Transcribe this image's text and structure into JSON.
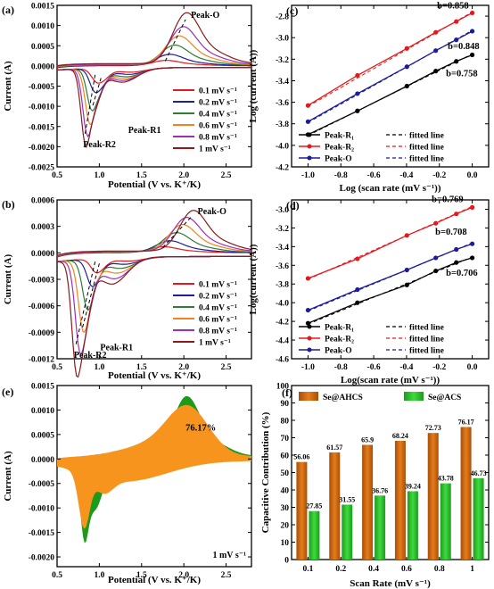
{
  "chart_data": [
    {
      "panel": "(a)",
      "type": "line",
      "xlabel": "Potential (V vs. K⁺/K)",
      "ylabel": "Current (A)",
      "xlim": [
        0.5,
        2.8
      ],
      "ylim": [
        -0.0025,
        0.0015
      ],
      "x_ticks": [
        "0.5",
        "1.0",
        "1.5",
        "2.0",
        "2.5"
      ],
      "y_ticks": [
        "-0.0025",
        "-0.0020",
        "-0.0015",
        "-0.0010",
        "-0.0005",
        "0.0000",
        "0.0005",
        "0.0010",
        "0.0015"
      ],
      "annotations": [
        "Peak-O",
        "Peak-R1",
        "Peak-R2"
      ],
      "series": [
        {
          "name": "0.1 mV s⁻¹",
          "color": "#e41a1c",
          "anodic_peak": [
            1.78,
            0.00012
          ],
          "cathodic_r1": [
            1.02,
            -0.0003
          ],
          "cathodic_r2": [
            0.95,
            -0.00022
          ]
        },
        {
          "name": "0.2 mV s⁻¹",
          "color": "#1f1f9e",
          "anodic_peak": [
            1.82,
            0.00025
          ],
          "cathodic_r1": [
            1.0,
            -0.00045
          ],
          "cathodic_r2": [
            0.93,
            -0.0004
          ]
        },
        {
          "name": "0.4 mV s⁻¹",
          "color": "#2e7d32",
          "anodic_peak": [
            1.88,
            0.00045
          ],
          "cathodic_r1": [
            0.97,
            -0.00062
          ],
          "cathodic_r2": [
            0.9,
            -0.0008
          ]
        },
        {
          "name": "0.6 mV s⁻¹",
          "color": "#f5821f",
          "anodic_peak": [
            1.93,
            0.00065
          ],
          "cathodic_r1": [
            0.95,
            -0.00075
          ],
          "cathodic_r2": [
            0.88,
            -0.0011
          ]
        },
        {
          "name": "0.8 mV s⁻¹",
          "color": "#9b30b8",
          "anodic_peak": [
            1.98,
            0.00085
          ],
          "cathodic_r1": [
            0.93,
            -0.00088
          ],
          "cathodic_r2": [
            0.85,
            -0.0014
          ]
        },
        {
          "name": "1 mV s⁻¹",
          "color": "#8b1a1a",
          "anodic_peak": [
            2.02,
            0.00115
          ],
          "cathodic_r1": [
            0.92,
            -0.001
          ],
          "cathodic_r2": [
            0.83,
            -0.0017
          ]
        }
      ]
    },
    {
      "panel": "(b)",
      "type": "line",
      "xlabel": "Potential (V vs. K⁺/K)",
      "ylabel": "Current (A)",
      "xlim": [
        0.5,
        2.8
      ],
      "ylim": [
        -0.0012,
        0.0006
      ],
      "x_ticks": [
        "0.5",
        "1.0",
        "1.5",
        "2.0",
        "2.5"
      ],
      "y_ticks": [
        "-0.0012",
        "-0.0009",
        "-0.0006",
        "-0.0003",
        "0.0000",
        "0.0003",
        "0.0006"
      ],
      "annotations": [
        "Peak-O",
        "Peak-R1",
        "Peak-R2"
      ],
      "series": [
        {
          "name": "0.1 mV s⁻¹",
          "color": "#e41a1c",
          "anodic_peak": [
            1.75,
            6e-05
          ],
          "cathodic_r1": [
            1.0,
            -0.00012
          ],
          "cathodic_r2": [
            0.95,
            -0.0001
          ]
        },
        {
          "name": "0.2 mV s⁻¹",
          "color": "#1f1f9e",
          "anodic_peak": [
            1.82,
            0.00012
          ],
          "cathodic_r1": [
            0.95,
            -0.00022
          ],
          "cathodic_r2": [
            0.9,
            -0.0002
          ]
        },
        {
          "name": "0.4 mV s⁻¹",
          "color": "#2e7d32",
          "anodic_peak": [
            1.9,
            0.0002
          ],
          "cathodic_r1": [
            0.9,
            -0.00035
          ],
          "cathodic_r2": [
            0.85,
            -0.0004
          ]
        },
        {
          "name": "0.6 mV s⁻¹",
          "color": "#f5821f",
          "anodic_peak": [
            1.97,
            0.00028
          ],
          "cathodic_r1": [
            0.86,
            -0.0005
          ],
          "cathodic_r2": [
            0.8,
            -0.0006
          ]
        },
        {
          "name": "0.8 mV s⁻¹",
          "color": "#9b30b8",
          "anodic_peak": [
            2.02,
            0.00035
          ],
          "cathodic_r1": [
            0.83,
            -0.00068
          ],
          "cathodic_r2": [
            0.76,
            -0.0008
          ]
        },
        {
          "name": "1 mV s⁻¹",
          "color": "#8b1a1a",
          "anodic_peak": [
            2.1,
            0.00042
          ],
          "cathodic_r1": [
            0.8,
            -0.00085
          ],
          "cathodic_r2": [
            0.72,
            -0.00105
          ]
        }
      ]
    },
    {
      "panel": "(c)",
      "type": "scatter",
      "xlabel": "Log (scan rate (mV s⁻¹))",
      "ylabel": "Log (current (A))",
      "xlim": [
        -1.1,
        0.1
      ],
      "ylim": [
        -4.2,
        -2.7
      ],
      "x_ticks": [
        "-1.0",
        "-0.8",
        "-0.6",
        "-0.4",
        "-0.2",
        "0.0"
      ],
      "y_ticks": [
        "-4.2",
        "-4.0",
        "-3.8",
        "-3.6",
        "-3.4",
        "-3.2",
        "-3.0",
        "-2.8"
      ],
      "x": [
        -1.0,
        -0.699,
        -0.398,
        -0.222,
        -0.097,
        0.0
      ],
      "series": [
        {
          "name": "Peak-R₁",
          "color": "#000000",
          "slope_label": "b=0.758",
          "values": [
            -3.9,
            -3.68,
            -3.45,
            -3.31,
            -3.22,
            -3.16
          ]
        },
        {
          "name": "Peak-R₂",
          "color": "#e8171b",
          "slope_label": "b=0.858",
          "values": [
            -3.63,
            -3.35,
            -3.1,
            -2.95,
            -2.85,
            -2.77
          ]
        },
        {
          "name": "Peak-O",
          "color": "#1b1b9c",
          "slope_label": "b=0.848",
          "values": [
            -3.78,
            -3.52,
            -3.27,
            -3.12,
            -3.02,
            -2.94
          ]
        }
      ],
      "legend": [
        "Peak-R₁",
        "fitted line",
        "Peak-R₂",
        "fitted line",
        "Peak-O",
        "fitted line"
      ],
      "legend_position": "bottom-right"
    },
    {
      "panel": "(d)",
      "type": "scatter",
      "xlabel": "Log(scan rate (mV s⁻¹))",
      "ylabel": "Log(current (A))",
      "xlim": [
        -1.1,
        0.1
      ],
      "ylim": [
        -4.6,
        -2.9
      ],
      "x_ticks": [
        "-1.0",
        "-0.8",
        "-0.6",
        "-0.4",
        "-0.2",
        "0.0"
      ],
      "y_ticks": [
        "-4.6",
        "-4.4",
        "-4.2",
        "-4.0",
        "-3.8",
        "-3.6",
        "-3.4",
        "-3.2",
        "-3.0"
      ],
      "x": [
        -1.0,
        -0.699,
        -0.398,
        -0.222,
        -0.097,
        0.0
      ],
      "series": [
        {
          "name": "Peak-R₁",
          "color": "#000000",
          "slope_label": "b=0.706",
          "values": [
            -4.22,
            -4.0,
            -3.81,
            -3.66,
            -3.57,
            -3.52
          ]
        },
        {
          "name": "Peak-R₂",
          "color": "#e8171b",
          "slope_label": "b=0.769",
          "values": [
            -3.74,
            -3.53,
            -3.28,
            -3.15,
            -3.05,
            -2.98
          ]
        },
        {
          "name": "Peak-O",
          "color": "#1b1b9c",
          "slope_label": "b=0.708",
          "values": [
            -4.08,
            -3.86,
            -3.65,
            -3.52,
            -3.43,
            -3.37
          ]
        }
      ],
      "legend": [
        "Peak-R₁",
        "fitted line",
        "Peak-R₂",
        "fitted line",
        "Peak-O",
        "fitted line"
      ],
      "legend_position": "bottom-right"
    },
    {
      "panel": "(e)",
      "type": "area",
      "xlabel": "Potential (V vs. K⁺/K)",
      "ylabel": "Current (A)",
      "xlim": [
        0.5,
        2.8
      ],
      "ylim": [
        -0.0022,
        0.0015
      ],
      "x_ticks": [
        "0.5",
        "1.0",
        "1.5",
        "2.0",
        "2.5"
      ],
      "y_ticks": [
        "-0.0020",
        "-0.0015",
        "-0.0010",
        "-0.0005",
        "0.0000",
        "0.0005",
        "0.0010",
        "0.0015"
      ],
      "capacitive_percent": "76.17%",
      "scan_rate_label": "1 mV s⁻¹",
      "colors": {
        "capacitive": "#f7941d",
        "total": "#1a9b1a"
      }
    },
    {
      "panel": "(f)",
      "type": "bar",
      "xlabel": "Scan Rate (mV s⁻¹)",
      "ylabel": "Capacitive Contribution (%)",
      "ylim": [
        0,
        100
      ],
      "y_ticks": [
        "0",
        "10",
        "20",
        "30",
        "40",
        "50",
        "60",
        "70",
        "80",
        "90",
        "100"
      ],
      "categories": [
        "0.1",
        "0.2",
        "0.4",
        "0.6",
        "0.8",
        "1"
      ],
      "series": [
        {
          "name": "Se@AHCS",
          "color": "#e57c1c",
          "values": [
            56.06,
            61.57,
            65.9,
            68.24,
            72.73,
            76.17
          ],
          "labels": [
            "56.06",
            "61.57",
            "65.9",
            "68.24",
            "72.73",
            "76.17"
          ]
        },
        {
          "name": "Se@ACS",
          "color": "#3ddb3d",
          "values": [
            27.85,
            31.55,
            36.76,
            39.24,
            43.78,
            46.73
          ],
          "labels": [
            "27.85",
            "31.55",
            "36.76",
            "39.24",
            "43.78",
            "46.73"
          ]
        }
      ],
      "legend_position": "top"
    }
  ]
}
